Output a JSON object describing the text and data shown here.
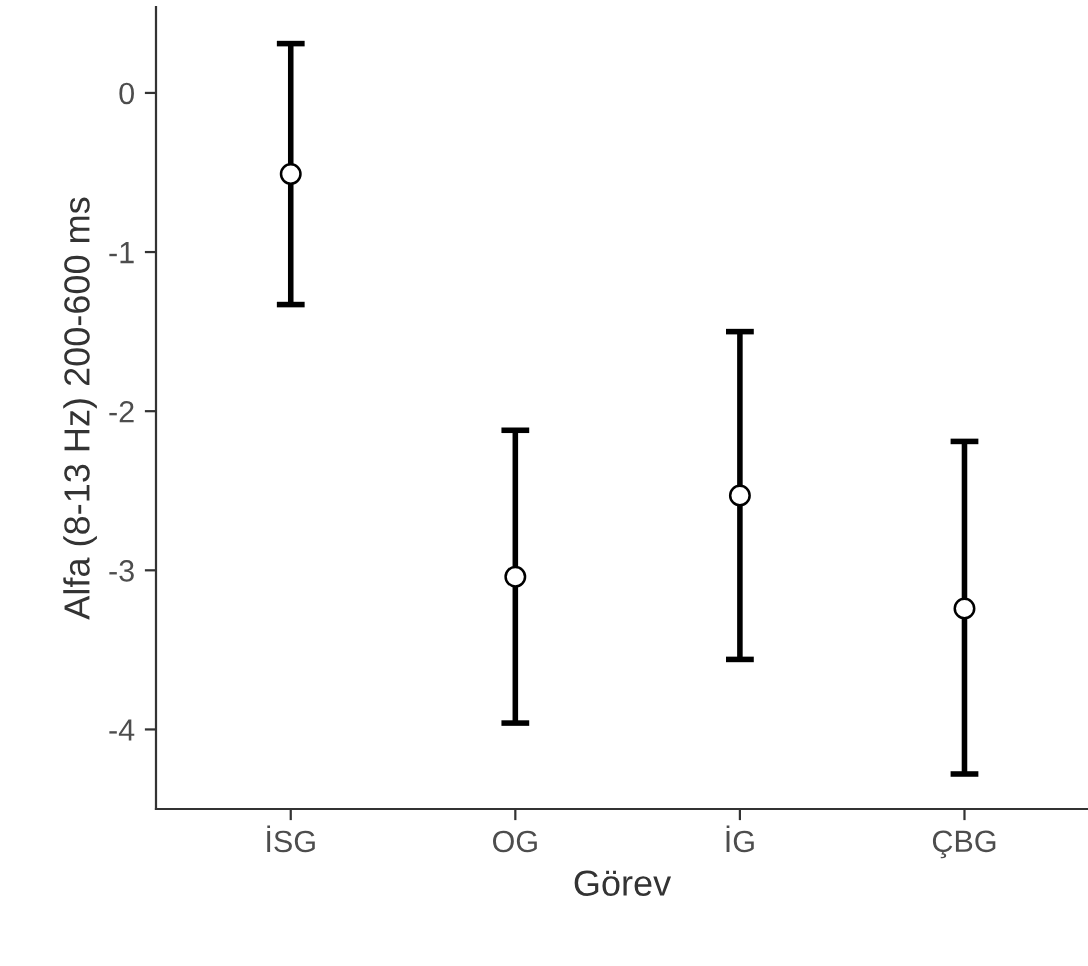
{
  "chart_data": {
    "type": "scatter",
    "xlabel": "Görev",
    "ylabel": "Alfa (8-13 Hz) 200-600 ms",
    "categories": [
      "İSG",
      "OG",
      "İG",
      "ÇBG"
    ],
    "values": [
      -0.51,
      -3.04,
      -2.53,
      -3.24
    ],
    "errors": [
      [
        -1.33,
        0.31
      ],
      [
        -3.96,
        -2.12
      ],
      [
        -3.56,
        -1.5
      ],
      [
        -4.28,
        -2.19
      ]
    ],
    "color": "#ffffff",
    "marker": "circle",
    "grid": false,
    "legend": false,
    "ylim": [
      -4.5,
      0.54
    ],
    "yticks": [
      {
        "value": 0,
        "label": "0"
      },
      {
        "value": -1,
        "label": "-1"
      },
      {
        "value": -2,
        "label": "-2"
      },
      {
        "value": -3,
        "label": "-3"
      },
      {
        "value": -4,
        "label": "-4"
      }
    ]
  }
}
